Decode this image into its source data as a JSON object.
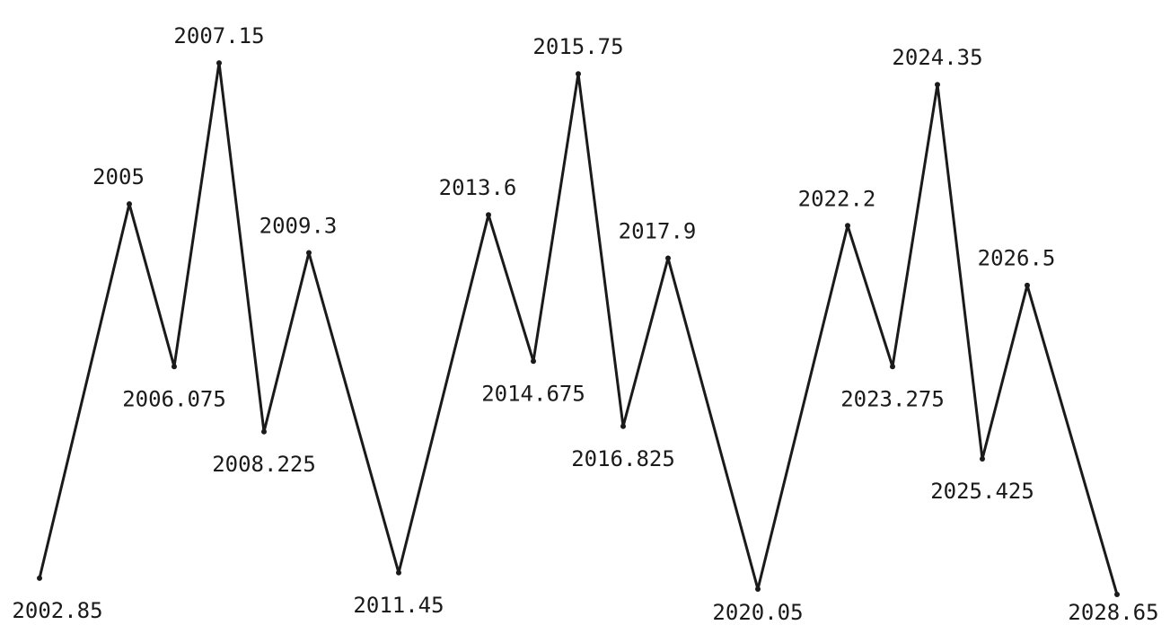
{
  "chart_data": {
    "type": "line",
    "title": "",
    "xlabel": "",
    "ylabel": "",
    "grid": false,
    "legend": "none",
    "line_color": "#1a1a1a",
    "series": [
      {
        "labels": [
          "2002.85",
          "2005",
          "2006.075",
          "2007.15",
          "2008.225",
          "2009.3",
          "2011.45",
          "2013.6",
          "2014.675",
          "2015.75",
          "2016.825",
          "2017.9",
          "2020.05",
          "2022.2",
          "2023.275",
          "2024.35",
          "2025.425",
          "2026.5",
          "2028.65"
        ],
        "x": [
          2002.85,
          2005,
          2006.075,
          2007.15,
          2008.225,
          2009.3,
          2011.45,
          2013.6,
          2014.675,
          2015.75,
          2016.825,
          2017.9,
          2020.05,
          2022.2,
          2023.275,
          2024.35,
          2025.425,
          2026.5,
          2028.65
        ],
        "y": [
          0.03,
          0.72,
          0.42,
          0.98,
          0.3,
          0.63,
          0.04,
          0.7,
          0.43,
          0.96,
          0.31,
          0.62,
          0.01,
          0.68,
          0.42,
          0.94,
          0.25,
          0.57,
          0.0
        ]
      }
    ]
  }
}
